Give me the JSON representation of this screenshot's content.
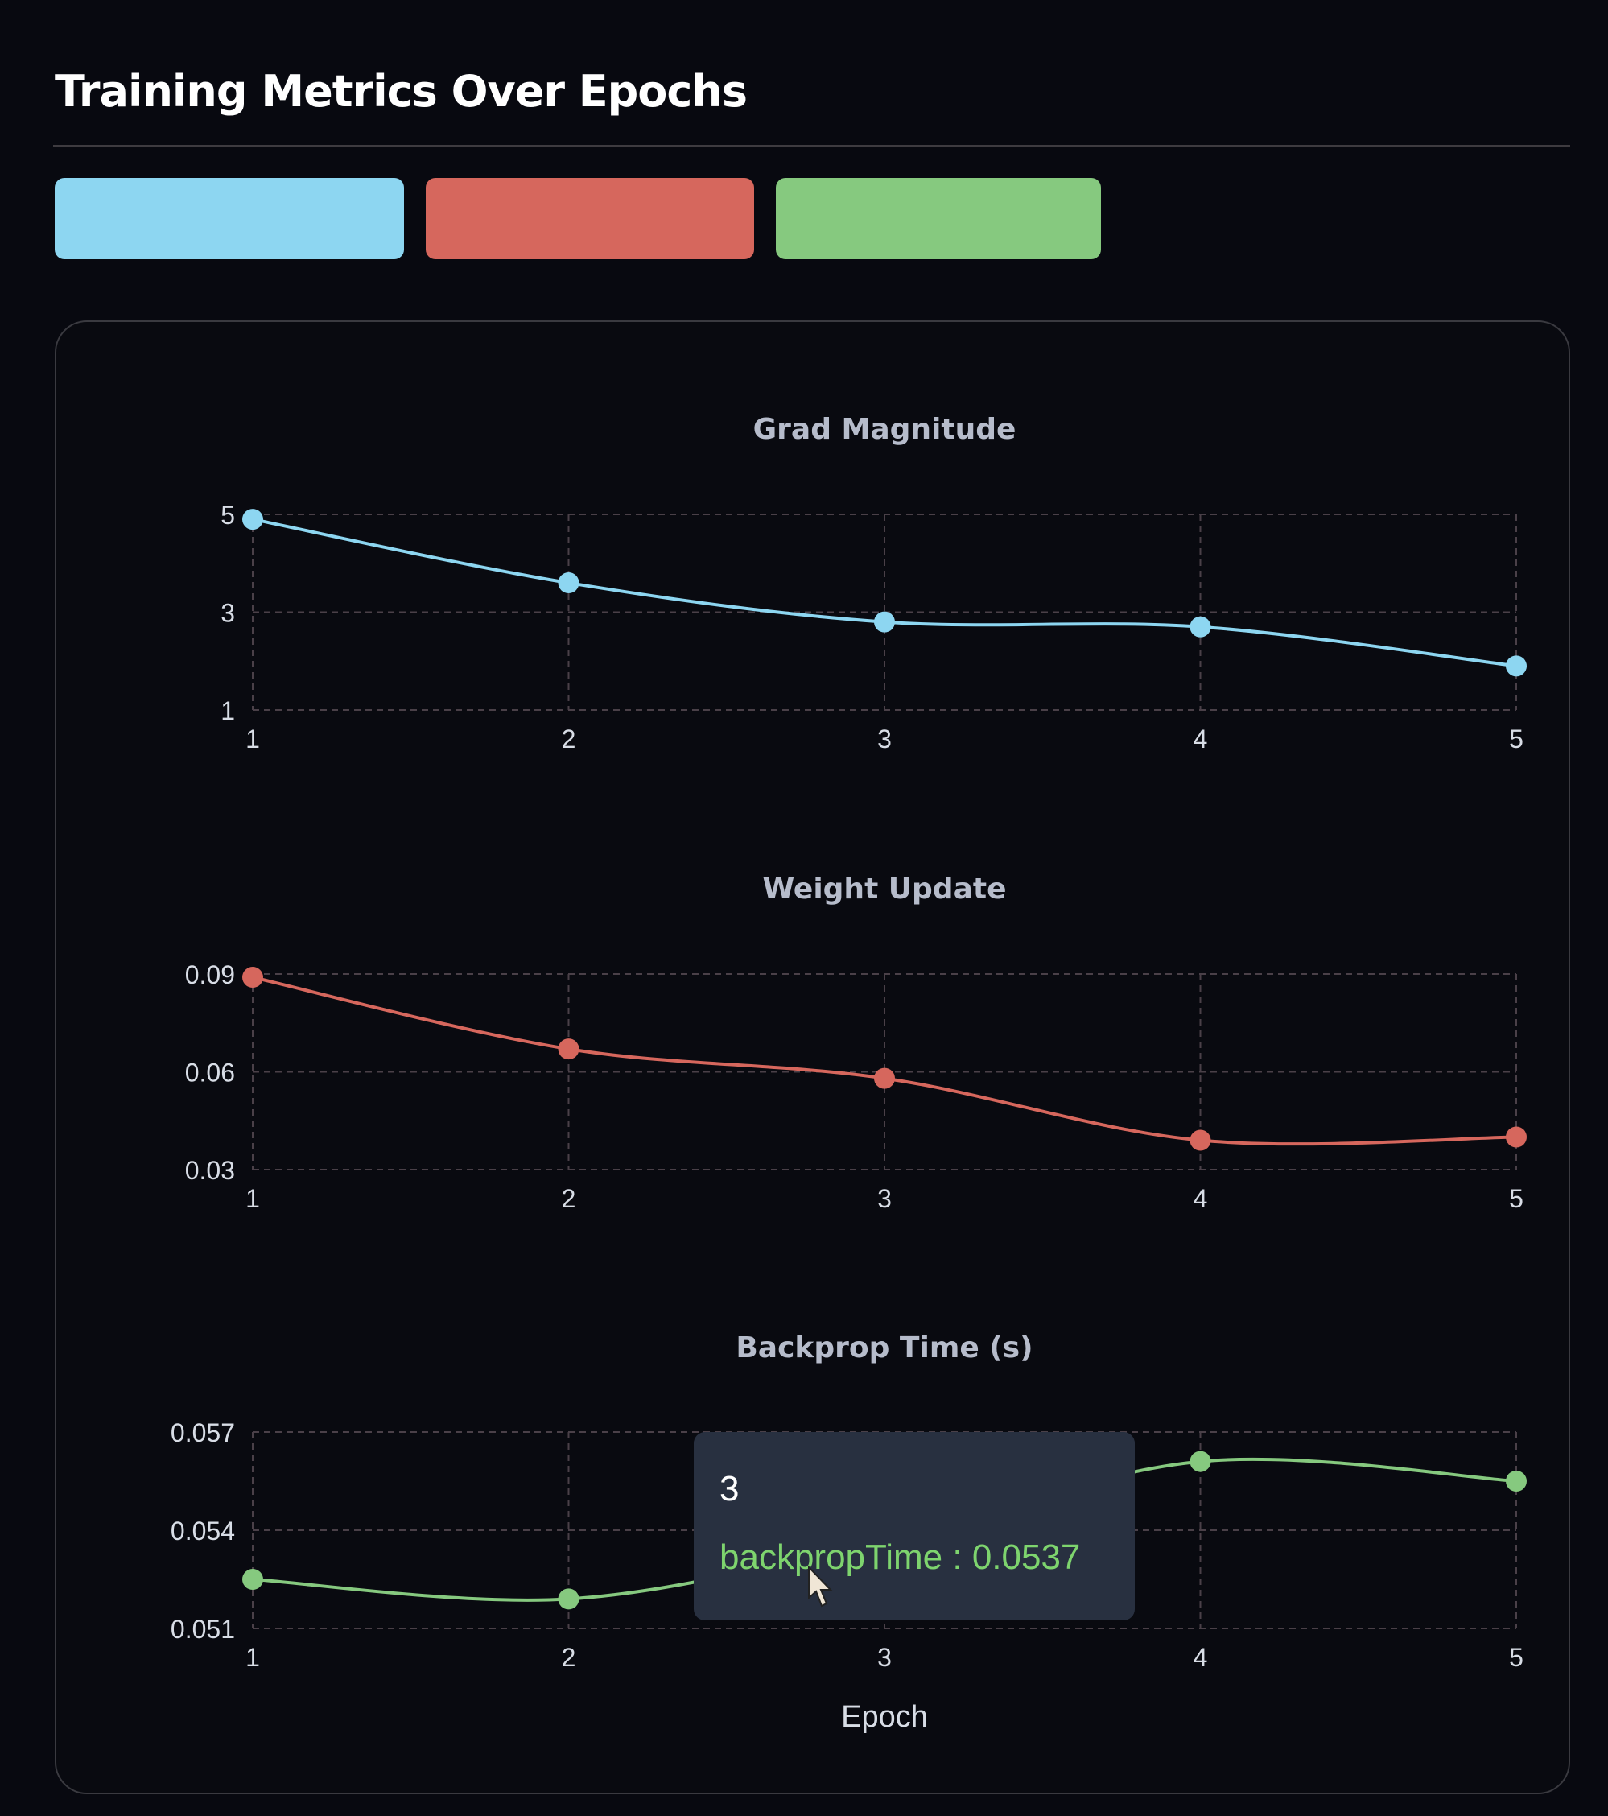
{
  "header": {
    "title": "Training Metrics Over Epochs"
  },
  "legend_buttons": [
    {
      "metric": "gradMagnitude",
      "color": "#8dd6f1"
    },
    {
      "metric": "weightUpdate",
      "color": "#d6675d"
    },
    {
      "metric": "backpropTime",
      "color": "#86c97f"
    }
  ],
  "chart_data": [
    {
      "type": "line",
      "title": "Grad Magnitude",
      "x": [
        1,
        2,
        3,
        4,
        5
      ],
      "values": [
        4.9,
        3.6,
        2.8,
        2.7,
        1.9
      ],
      "xlabel": "",
      "ylabel": "",
      "ylim": [
        1,
        5
      ],
      "yticks": [
        "1",
        "3",
        "5"
      ],
      "xticks": [
        "1",
        "2",
        "3",
        "4",
        "5"
      ],
      "color": "#8dd6f1",
      "grid": true
    },
    {
      "type": "line",
      "title": "Weight Update",
      "x": [
        1,
        2,
        3,
        4,
        5
      ],
      "values": [
        0.089,
        0.067,
        0.058,
        0.039,
        0.04
      ],
      "xlabel": "",
      "ylabel": "",
      "ylim": [
        0.03,
        0.09
      ],
      "yticks": [
        "0.03",
        "0.06",
        "0.09"
      ],
      "xticks": [
        "1",
        "2",
        "3",
        "4",
        "5"
      ],
      "color": "#d6675d",
      "grid": true
    },
    {
      "type": "line",
      "title": "Backprop Time (s)",
      "x": [
        1,
        2,
        3,
        4,
        5
      ],
      "values": [
        0.0525,
        0.0519,
        0.0537,
        0.0561,
        0.0555
      ],
      "xlabel": "Epoch",
      "ylabel": "",
      "ylim": [
        0.051,
        0.057
      ],
      "yticks": [
        "0.051",
        "0.054",
        "0.057"
      ],
      "xticks": [
        "1",
        "2",
        "3",
        "4",
        "5"
      ],
      "color": "#86c97f",
      "grid": true
    }
  ],
  "tooltip": {
    "label": "3",
    "series": "backpropTime",
    "separator": " : ",
    "value": "0.0537",
    "text": "backpropTime : 0.0537"
  }
}
